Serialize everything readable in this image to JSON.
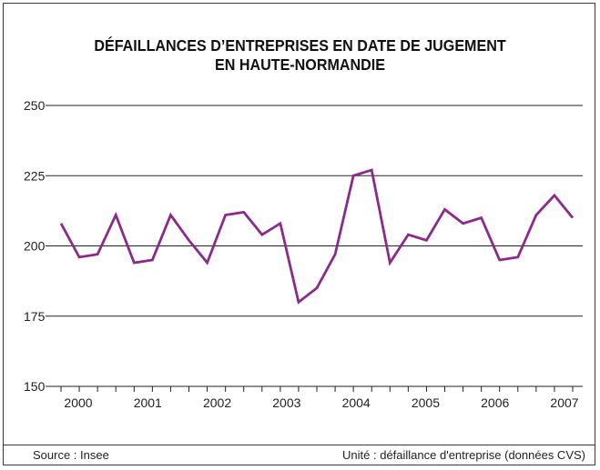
{
  "title_lines": [
    "DÉFAILLANCES D’ENTREPRISES EN DATE DE JUGEMENT",
    "EN HAUTE-NORMANDIE"
  ],
  "footer": {
    "source": "Source : Insee",
    "unit": "Unité : défaillance d'entreprise (données CVS)"
  },
  "colors": {
    "line": "#8b2a8b",
    "grid": "#222222",
    "frame": "#3a3a3a"
  },
  "chart_data": {
    "type": "line",
    "title": "DÉFAILLANCES D’ENTREPRISES EN DATE DE JUGEMENT EN HAUTE-NORMANDIE",
    "xlabel": "",
    "ylabel": "",
    "ylim": [
      150,
      250
    ],
    "yticks": [
      150,
      175,
      200,
      225,
      250
    ],
    "grid": true,
    "x_year_labels": [
      "2000",
      "2001",
      "2002",
      "2003",
      "2004",
      "2005",
      "2006",
      "2007"
    ],
    "series": [
      {
        "values": [
          208,
          196,
          197,
          211,
          194,
          195,
          211,
          202,
          194,
          211,
          212,
          204,
          208,
          180,
          185,
          197,
          225,
          227,
          194,
          204,
          202,
          213,
          208,
          210,
          195,
          196,
          211,
          218,
          210
        ]
      }
    ]
  }
}
